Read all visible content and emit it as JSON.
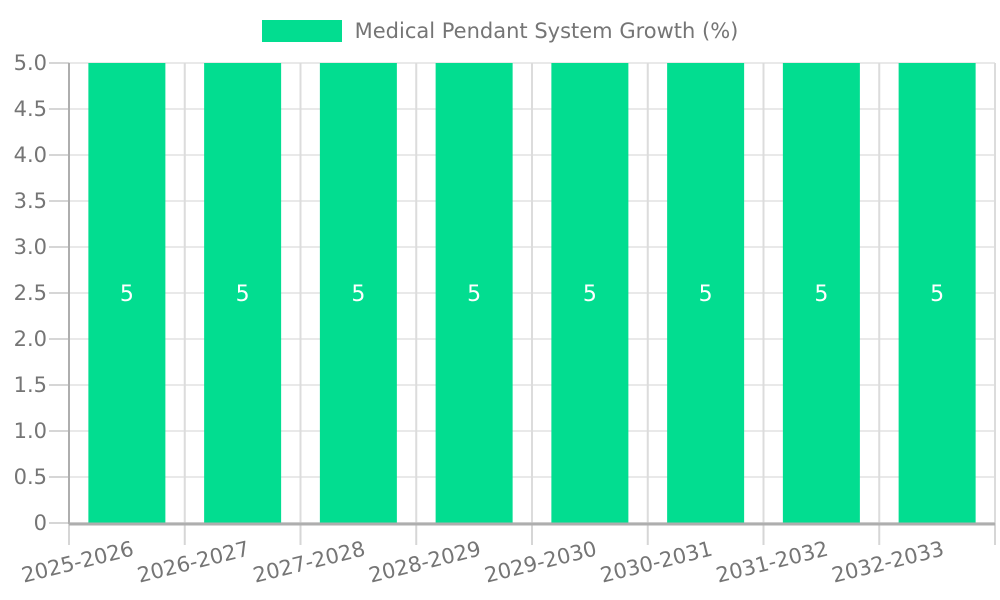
{
  "legend": {
    "label": "Medical Pendant System Growth (%)"
  },
  "chart_data": {
    "type": "bar",
    "title": "Medical Pendant System Growth (%)",
    "categories": [
      "2025-2026",
      "2026-2027",
      "2027-2028",
      "2028-2029",
      "2029-2030",
      "2030-2031",
      "2031-2032",
      "2032-2033"
    ],
    "series": [
      {
        "name": "Medical Pendant System Growth (%)",
        "values": [
          5,
          5,
          5,
          5,
          5,
          5,
          5,
          5
        ]
      }
    ],
    "bar_value_labels": [
      "5",
      "5",
      "5",
      "5",
      "5",
      "5",
      "5",
      "5"
    ],
    "xlabel": "",
    "ylabel": "",
    "ylim": [
      0,
      5
    ],
    "yticks": [
      0,
      0.5,
      1,
      1.5,
      2,
      2.5,
      3,
      3.5,
      4,
      4.5,
      5
    ],
    "ytick_labels": [
      "0",
      "0.5",
      "1.0",
      "1.5",
      "2.0",
      "2.5",
      "3.0",
      "3.5",
      "4.0",
      "4.5",
      "5.0"
    ],
    "x_tick_rotation_deg": -14,
    "grid": true,
    "legend_position": "top-center",
    "colors": {
      "bar": "#02dd90",
      "bar_label": "#ffffff",
      "axis_line": "#aeaeae",
      "grid_horizontal": "#e9e9e9",
      "grid_vertical": "#dcdcdc",
      "tick_mark": "#d6d6d6",
      "tick_label": "#757575",
      "legend_text": "#757575"
    }
  }
}
